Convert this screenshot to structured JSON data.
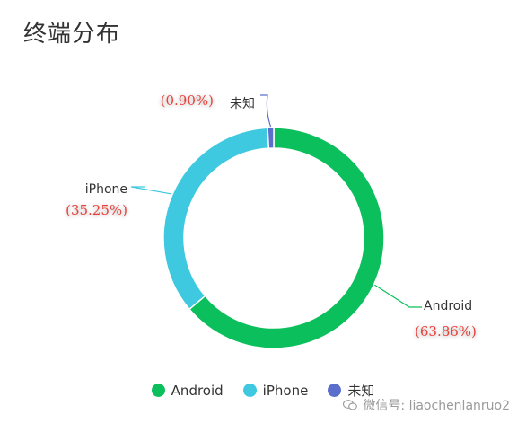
{
  "title": "终端分布",
  "chart_data": {
    "type": "pie",
    "subtype": "donut",
    "title": "终端分布",
    "slices": [
      {
        "name": "Android",
        "value": 63.86,
        "label": "(63.86%)",
        "color": "#0bbf5c"
      },
      {
        "name": "iPhone",
        "value": 35.25,
        "label": "(35.25%)",
        "color": "#3ec9e0"
      },
      {
        "name": "未知",
        "value": 0.9,
        "label": "(0.90%)",
        "color": "#5a6fcc"
      }
    ],
    "legend": {
      "position": "bottom",
      "items": [
        "Android",
        "iPhone",
        "未知"
      ]
    }
  },
  "watermark": "微信号: liaochenlanruo2",
  "icons": {
    "watermark": "wechat-icon"
  }
}
